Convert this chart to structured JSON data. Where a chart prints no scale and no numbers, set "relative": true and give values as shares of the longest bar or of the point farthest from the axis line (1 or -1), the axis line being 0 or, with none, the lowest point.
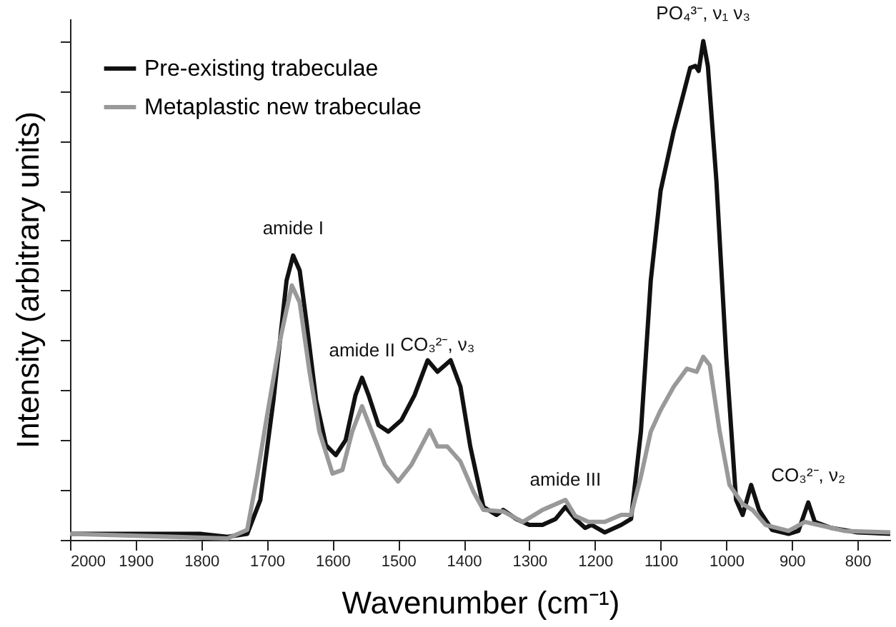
{
  "chart_data": {
    "type": "line",
    "relative": true,
    "xlabel": "Wavenumber (cm⁻¹)",
    "ylabel": "Intensity (arbitrary units)",
    "xlim": [
      2000,
      750
    ],
    "xticks": [
      2000,
      1900,
      1800,
      1700,
      1600,
      1500,
      1400,
      1300,
      1200,
      1100,
      1000,
      900,
      800
    ],
    "legend": "top left",
    "grid": false,
    "marker": "none",
    "line_style": "solid",
    "series": [
      {
        "name": "Pre-existing trabeculae",
        "color": "#111111",
        "x": [
          2000,
          1800,
          1760,
          1730,
          1710,
          1690,
          1670,
          1660,
          1650,
          1640,
          1625,
          1610,
          1595,
          1580,
          1565,
          1555,
          1545,
          1530,
          1515,
          1495,
          1475,
          1455,
          1440,
          1420,
          1405,
          1390,
          1370,
          1350,
          1340,
          1320,
          1300,
          1280,
          1260,
          1245,
          1230,
          1215,
          1205,
          1185,
          1160,
          1145,
          1130,
          1115,
          1100,
          1080,
          1065,
          1055,
          1047,
          1042,
          1035,
          1028,
          1015,
          1000,
          985,
          975,
          962,
          950,
          930,
          905,
          890,
          875,
          865,
          840,
          800,
          750
        ],
        "values": [
          0.012,
          0.012,
          0.006,
          0.012,
          0.08,
          0.28,
          0.52,
          0.57,
          0.54,
          0.44,
          0.28,
          0.19,
          0.17,
          0.2,
          0.29,
          0.325,
          0.29,
          0.23,
          0.217,
          0.24,
          0.29,
          0.36,
          0.337,
          0.36,
          0.307,
          0.187,
          0.066,
          0.05,
          0.06,
          0.042,
          0.03,
          0.03,
          0.042,
          0.066,
          0.042,
          0.024,
          0.03,
          0.015,
          0.03,
          0.042,
          0.217,
          0.52,
          0.7,
          0.82,
          0.895,
          0.946,
          0.95,
          0.94,
          1.0,
          0.95,
          0.72,
          0.367,
          0.08,
          0.05,
          0.11,
          0.06,
          0.02,
          0.012,
          0.018,
          0.075,
          0.036,
          0.024,
          0.015,
          0.012
        ]
      },
      {
        "name": "Metaplastic new trabeculae",
        "color": "#999999",
        "x": [
          2000,
          1760,
          1730,
          1715,
          1700,
          1680,
          1662,
          1650,
          1635,
          1620,
          1600,
          1585,
          1570,
          1555,
          1540,
          1520,
          1500,
          1480,
          1465,
          1452,
          1440,
          1425,
          1405,
          1385,
          1370,
          1340,
          1310,
          1280,
          1245,
          1230,
          1210,
          1185,
          1160,
          1145,
          1130,
          1115,
          1100,
          1080,
          1060,
          1045,
          1035,
          1025,
          1010,
          995,
          975,
          960,
          940,
          905,
          880,
          860,
          820,
          750
        ],
        "values": [
          0.012,
          0.003,
          0.02,
          0.127,
          0.247,
          0.4,
          0.51,
          0.476,
          0.337,
          0.217,
          0.133,
          0.14,
          0.217,
          0.268,
          0.217,
          0.15,
          0.117,
          0.15,
          0.187,
          0.22,
          0.187,
          0.187,
          0.157,
          0.096,
          0.06,
          0.057,
          0.036,
          0.06,
          0.08,
          0.048,
          0.036,
          0.036,
          0.05,
          0.05,
          0.127,
          0.217,
          0.26,
          0.307,
          0.343,
          0.337,
          0.367,
          0.35,
          0.217,
          0.11,
          0.072,
          0.06,
          0.03,
          0.018,
          0.036,
          0.03,
          0.018,
          0.015
        ]
      }
    ],
    "annotations": [
      {
        "text": "amide I",
        "x": 1660,
        "y": 0.57
      },
      {
        "text": "amide II",
        "x": 1555,
        "y": 0.325
      },
      {
        "text": "CO₃²⁻, ν₃",
        "x": 1440,
        "y": 0.337
      },
      {
        "text": "amide III",
        "x": 1245,
        "y": 0.066
      },
      {
        "text": "PO₄³⁻, ν₁ ν₃",
        "x": 1035,
        "y": 1.0
      },
      {
        "text": "CO₃²⁻, ν₂",
        "x": 875,
        "y": 0.075
      }
    ]
  }
}
